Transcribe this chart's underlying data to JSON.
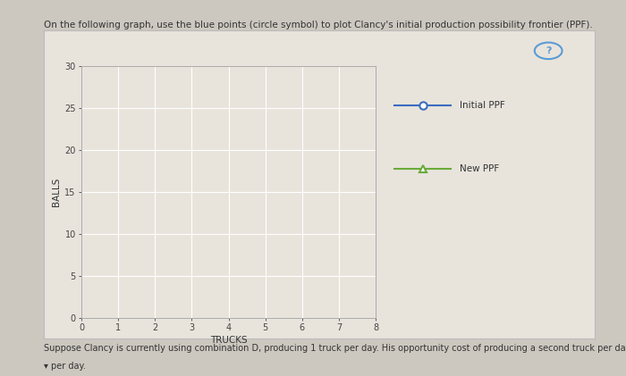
{
  "title": "On the following graph, use the blue points (circle symbol) to plot Clancy's initial production possibility frontier (PPF).",
  "xlabel": "TRUCKS",
  "ylabel": "BALLS",
  "xlim": [
    0,
    8
  ],
  "ylim": [
    0,
    30
  ],
  "xticks": [
    0,
    1,
    2,
    3,
    4,
    5,
    6,
    7,
    8
  ],
  "yticks": [
    0,
    5,
    10,
    15,
    20,
    25,
    30
  ],
  "outer_bg": "#ccc8c0",
  "inner_bg": "#e8e4dc",
  "plot_bg_color": "#e8e4dc",
  "grid_color": "#ffffff",
  "legend_labels": [
    "Initial PPF",
    "New PPF"
  ],
  "legend_marker_colors": [
    "#3a6dbf",
    "#6aaa3a"
  ],
  "legend_marker_styles": [
    "o",
    "^"
  ],
  "subtitle_text": "Suppose Clancy is currently using combination D, producing 1 truck per day. His opportunity cost of producing a second truck per day is",
  "subtitle_text2": "▾ per day.",
  "title_fontsize": 7.5,
  "axis_label_fontsize": 7.5,
  "tick_fontsize": 7,
  "legend_fontsize": 7.5,
  "question_mark_color": "#5b9bd5",
  "qmark_bg": "#e8e4dc"
}
